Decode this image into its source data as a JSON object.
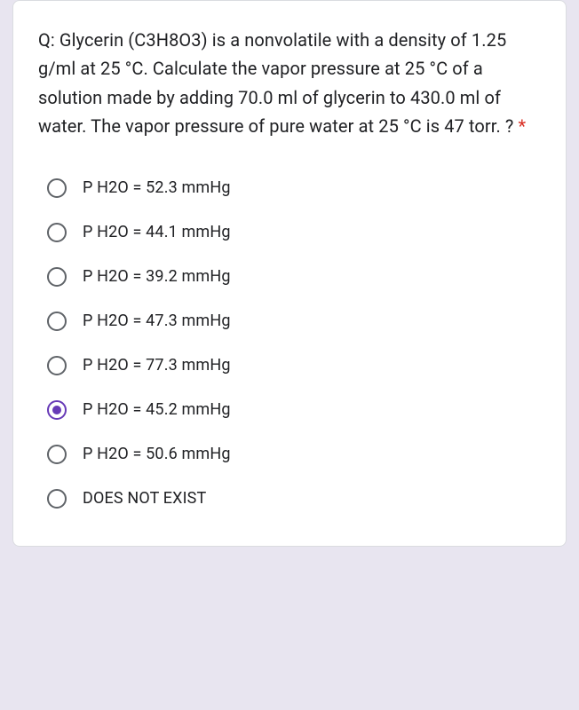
{
  "question": {
    "text": "Q: Glycerin (C3H8O3) is a nonvolatile with a density of 1.25 g/ml at 25 °C. Calculate the vapor pressure at 25 °C of a solution made by adding 70.0 ml of glycerin to 430.0 ml of water. The vapor pressure of pure water at 25 °C is 47 torr. ?",
    "required_marker": "*"
  },
  "options": [
    {
      "label": "P H2O = 52.3 mmHg",
      "selected": false
    },
    {
      "label": "P H2O = 44.1 mmHg",
      "selected": false
    },
    {
      "label": "P H2O = 39.2 mmHg",
      "selected": false
    },
    {
      "label": "P H2O = 47.3 mmHg",
      "selected": false
    },
    {
      "label": "P H2O = 77.3 mmHg",
      "selected": false
    },
    {
      "label": "P H2O = 45.2 mmHg",
      "selected": true
    },
    {
      "label": "P H2O = 50.6 mmHg",
      "selected": false
    },
    {
      "label": "DOES NOT EXIST",
      "selected": false
    }
  ],
  "colors": {
    "page_bg": "#e8e5f0",
    "card_bg": "#ffffff",
    "text": "#202124",
    "radio_border": "#5f6368",
    "accent": "#673ab7",
    "required": "#d93025",
    "card_border": "#dadce0"
  }
}
